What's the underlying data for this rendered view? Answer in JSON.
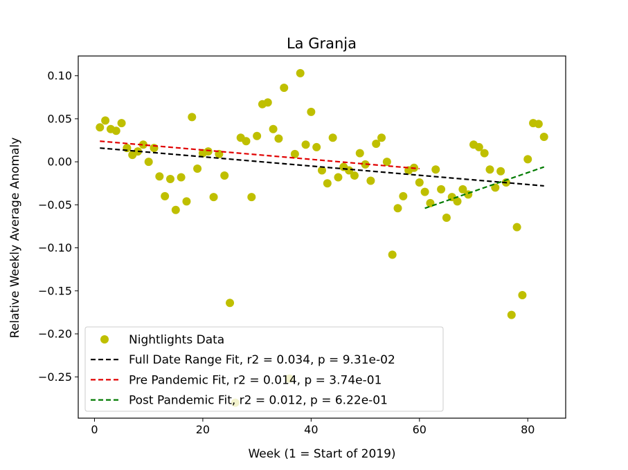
{
  "chart_data": {
    "type": "scatter",
    "title": "La Granja",
    "xlabel": "Week (1 = Start of 2019)",
    "ylabel": "Relative Weekly Average Anomaly",
    "xlim": [
      -3,
      87
    ],
    "ylim": [
      -0.298,
      0.123
    ],
    "x_ticks": [
      0,
      20,
      40,
      60,
      80
    ],
    "x_tick_labels": [
      "0",
      "20",
      "40",
      "60",
      "80"
    ],
    "y_ticks": [
      0.1,
      0.05,
      0.0,
      -0.05,
      -0.1,
      -0.15,
      -0.2,
      -0.25
    ],
    "y_tick_labels": [
      "0.10",
      "0.05",
      "0.00",
      "−0.05",
      "−0.10",
      "−0.15",
      "−0.20",
      "−0.25"
    ],
    "grid": false,
    "legend_position": "lower-left",
    "series": [
      {
        "name": "Nightlights Data",
        "kind": "markers",
        "color": "#bfbf00",
        "points": [
          [
            1,
            0.04
          ],
          [
            2,
            0.048
          ],
          [
            3,
            0.038
          ],
          [
            4,
            0.036
          ],
          [
            5,
            0.045
          ],
          [
            6,
            0.016
          ],
          [
            7,
            0.008
          ],
          [
            8,
            0.012
          ],
          [
            9,
            0.02
          ],
          [
            10,
            0.0
          ],
          [
            11,
            0.016
          ],
          [
            12,
            -0.017
          ],
          [
            13,
            -0.04
          ],
          [
            14,
            -0.02
          ],
          [
            15,
            -0.056
          ],
          [
            16,
            -0.018
          ],
          [
            17,
            -0.046
          ],
          [
            18,
            0.052
          ],
          [
            19,
            -0.008
          ],
          [
            20,
            0.01
          ],
          [
            21,
            0.012
          ],
          [
            22,
            -0.041
          ],
          [
            23,
            0.009
          ],
          [
            24,
            -0.016
          ],
          [
            25,
            -0.164
          ],
          [
            26,
            -0.28
          ],
          [
            27,
            0.028
          ],
          [
            28,
            0.024
          ],
          [
            29,
            -0.041
          ],
          [
            30,
            0.03
          ],
          [
            31,
            0.067
          ],
          [
            32,
            0.069
          ],
          [
            33,
            0.038
          ],
          [
            34,
            0.027
          ],
          [
            35,
            0.086
          ],
          [
            36,
            -0.252
          ],
          [
            37,
            0.009
          ],
          [
            38,
            0.103
          ],
          [
            39,
            0.02
          ],
          [
            40,
            0.058
          ],
          [
            41,
            0.017
          ],
          [
            42,
            -0.01
          ],
          [
            43,
            -0.025
          ],
          [
            44,
            0.028
          ],
          [
            45,
            -0.018
          ],
          [
            46,
            -0.006
          ],
          [
            47,
            -0.01
          ],
          [
            48,
            -0.016
          ],
          [
            49,
            0.01
          ],
          [
            50,
            -0.003
          ],
          [
            51,
            -0.022
          ],
          [
            52,
            0.021
          ],
          [
            53,
            0.028
          ],
          [
            54,
            0.0
          ],
          [
            55,
            -0.108
          ],
          [
            56,
            -0.054
          ],
          [
            57,
            -0.04
          ],
          [
            58,
            -0.01
          ],
          [
            59,
            -0.007
          ],
          [
            60,
            -0.024
          ],
          [
            61,
            -0.035
          ],
          [
            62,
            -0.048
          ],
          [
            63,
            -0.009
          ],
          [
            64,
            -0.032
          ],
          [
            65,
            -0.065
          ],
          [
            66,
            -0.041
          ],
          [
            67,
            -0.046
          ],
          [
            68,
            -0.032
          ],
          [
            69,
            -0.038
          ],
          [
            70,
            0.02
          ],
          [
            71,
            0.017
          ],
          [
            72,
            0.01
          ],
          [
            73,
            -0.009
          ],
          [
            74,
            -0.03
          ],
          [
            75,
            -0.011
          ],
          [
            76,
            -0.024
          ],
          [
            77,
            -0.178
          ],
          [
            78,
            -0.076
          ],
          [
            79,
            -0.155
          ],
          [
            80,
            0.003
          ],
          [
            81,
            0.045
          ],
          [
            82,
            0.044
          ],
          [
            83,
            0.029
          ]
        ]
      },
      {
        "name": "Full Date Range Fit, r2 = 0.034, p = 9.31e-02",
        "kind": "line",
        "dash": "dashed",
        "color": "#000000",
        "points": [
          [
            1,
            0.016
          ],
          [
            83,
            -0.028
          ]
        ]
      },
      {
        "name": "Pre Pandemic Fit, r2 = 0.014, p = 3.74e-01",
        "kind": "line",
        "dash": "dashed",
        "color": "#e00000",
        "points": [
          [
            1,
            0.024
          ],
          [
            60,
            -0.008
          ]
        ]
      },
      {
        "name": "Post Pandemic Fit, r2 = 0.012, p = 6.22e-01",
        "kind": "line",
        "dash": "dashed",
        "color": "#007a00",
        "points": [
          [
            61,
            -0.054
          ],
          [
            83,
            -0.006
          ]
        ]
      }
    ]
  }
}
